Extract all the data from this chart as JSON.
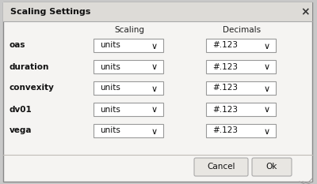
{
  "title": "Scaling Settings",
  "bg_outer": "#c8c8c8",
  "dialog_bg": "#f5f4f2",
  "header_bg": "#dddbd7",
  "rows": [
    "oas",
    "duration",
    "convexity",
    "dv01",
    "vega"
  ],
  "scaling_label": "Scaling",
  "decimals_label": "Decimals",
  "scaling_value": "units",
  "decimals_value": "#.123",
  "cancel_label": "Cancel",
  "ok_label": "Ok",
  "dropdown_bg": "#ffffff",
  "dropdown_border": "#999999",
  "button_bg": "#e8e6e2",
  "button_border": "#aaaaaa",
  "text_color": "#111111",
  "label_color": "#222222",
  "separator_color": "#c0bdb8",
  "close_color": "#333333",
  "title_bar_border": "#aaaaaa",
  "outer_border": "#888888"
}
